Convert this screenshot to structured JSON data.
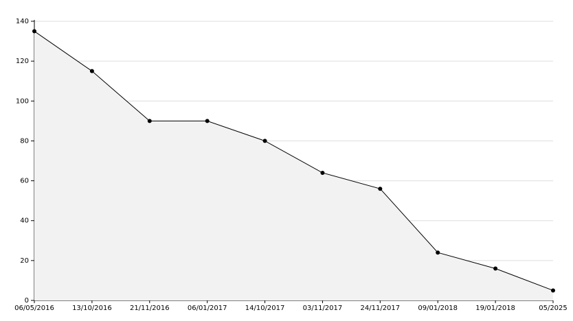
{
  "chart_data": {
    "type": "area",
    "categories": [
      "06/05/2016",
      "13/10/2016",
      "21/11/2016",
      "06/01/2017",
      "14/10/2017",
      "03/11/2017",
      "24/11/2017",
      "09/01/2018",
      "19/01/2018",
      "05/2025"
    ],
    "values": [
      135,
      115,
      90,
      90,
      80,
      64,
      56,
      24,
      16,
      5
    ],
    "color": "#000000",
    "fill": "#f2f2f2",
    "ylim": [
      0,
      140
    ],
    "yticks": [
      0,
      20,
      40,
      60,
      80,
      100,
      120,
      140
    ],
    "grid": true
  }
}
